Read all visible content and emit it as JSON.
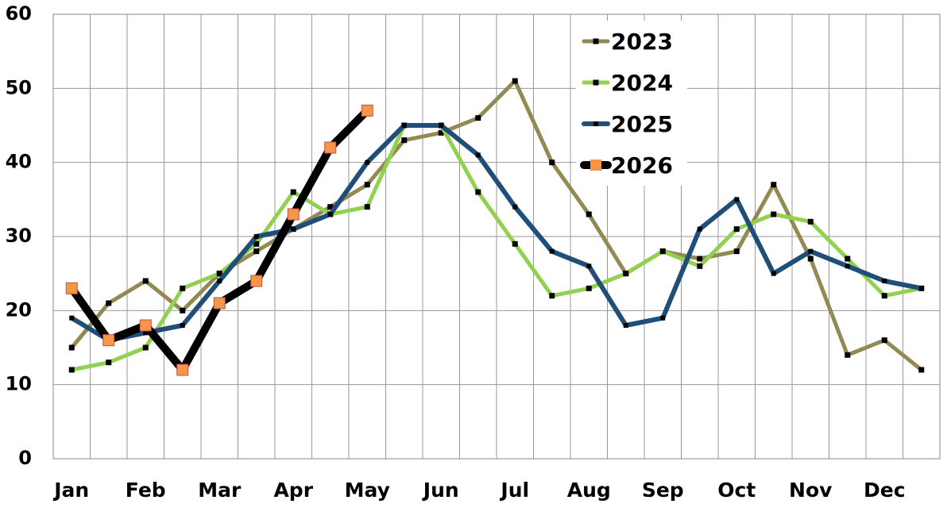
{
  "chart_data": {
    "type": "line",
    "categories": [
      "Jan",
      null,
      "Feb",
      null,
      "Mar",
      null,
      "Apr",
      null,
      "May",
      null,
      "Jun",
      null,
      "Jul",
      null,
      "Aug",
      null,
      "Sep",
      null,
      "Oct",
      null,
      "Nov",
      null,
      "Dec",
      null
    ],
    "series": [
      {
        "name": "2023",
        "color": "#938953",
        "marker_color": "#000000",
        "values": [
          15,
          21,
          24,
          20,
          25,
          28,
          31,
          34,
          37,
          43,
          44,
          46,
          51,
          40,
          33,
          25,
          28,
          27,
          28,
          37,
          27,
          14,
          16,
          12
        ]
      },
      {
        "name": "2024",
        "color": "#92D050",
        "marker_color": "#000000",
        "values": [
          12,
          13,
          15,
          23,
          25,
          29,
          36,
          33,
          34,
          45,
          45,
          36,
          29,
          22,
          23,
          25,
          28,
          26,
          31,
          33,
          32,
          27,
          22,
          23
        ]
      },
      {
        "name": "2025",
        "color": "#1F4E79",
        "marker_color": "#000000",
        "values": [
          19,
          16,
          17,
          18,
          24,
          30,
          31,
          33,
          40,
          45,
          45,
          41,
          34,
          28,
          26,
          18,
          19,
          31,
          35,
          25,
          28,
          26,
          24,
          23
        ]
      },
      {
        "name": "2026",
        "color": "#000000",
        "marker_color": "#F79646",
        "values": [
          23,
          16,
          18,
          12,
          21,
          24,
          33,
          42,
          47,
          null,
          null,
          null,
          null,
          null,
          null,
          null,
          null,
          null,
          null,
          null,
          null,
          null,
          null,
          null
        ]
      }
    ],
    "ylim": [
      0,
      60
    ],
    "yticks": [
      0,
      10,
      20,
      30,
      40,
      50,
      60
    ],
    "grid": true,
    "legend": "upper right"
  }
}
